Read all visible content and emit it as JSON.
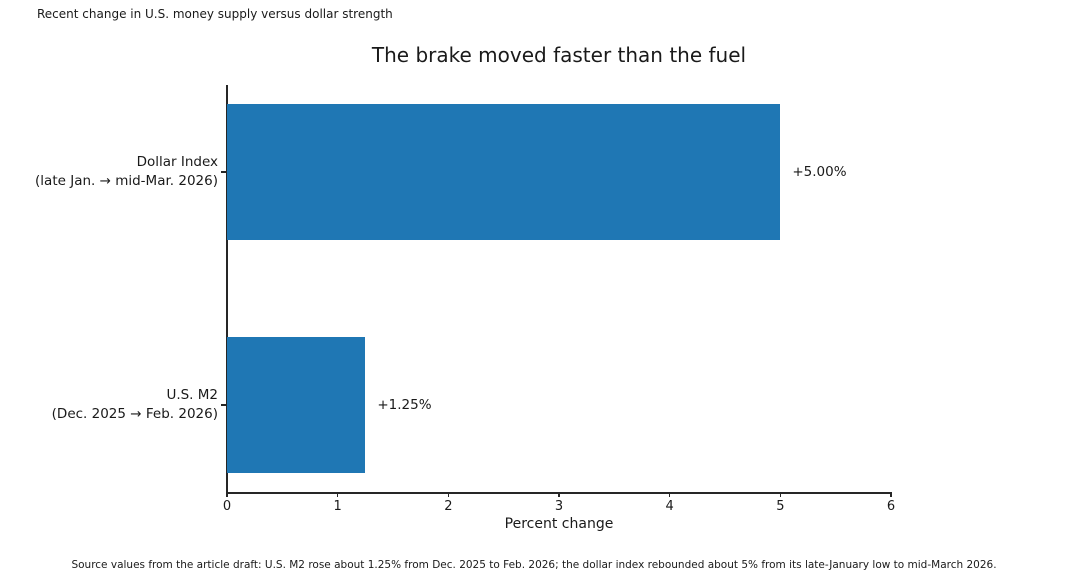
{
  "header": {
    "suptitle": "Recent change in U.S. money supply versus dollar strength"
  },
  "chart_data": {
    "type": "bar",
    "orientation": "horizontal",
    "title": "The brake moved faster than the fuel",
    "xlabel": "Percent change",
    "xlim": [
      0,
      6
    ],
    "xticks": [
      0,
      1,
      2,
      3,
      4,
      5,
      6
    ],
    "grid": false,
    "legend": "none",
    "bar_color": "#1f77b4",
    "bars": [
      {
        "category": "Dollar Index (late Jan. → mid-Mar. 2026)",
        "label_line1": "Dollar Index",
        "label_line2": "(late Jan. → mid-Mar. 2026)",
        "value": 5.0,
        "value_label": "+5.00%"
      },
      {
        "category": "U.S. M2 (Dec. 2025 → Feb. 2026)",
        "label_line1": "U.S. M2",
        "label_line2": "(Dec. 2025 → Feb. 2026)",
        "value": 1.25,
        "value_label": "+1.25%"
      }
    ]
  },
  "footer": {
    "note": "Source values from the article draft: U.S. M2 rose about 1.25% from Dec. 2025 to Feb. 2026; the dollar index rebounded about 5% from its late-January low to mid-March 2026."
  }
}
